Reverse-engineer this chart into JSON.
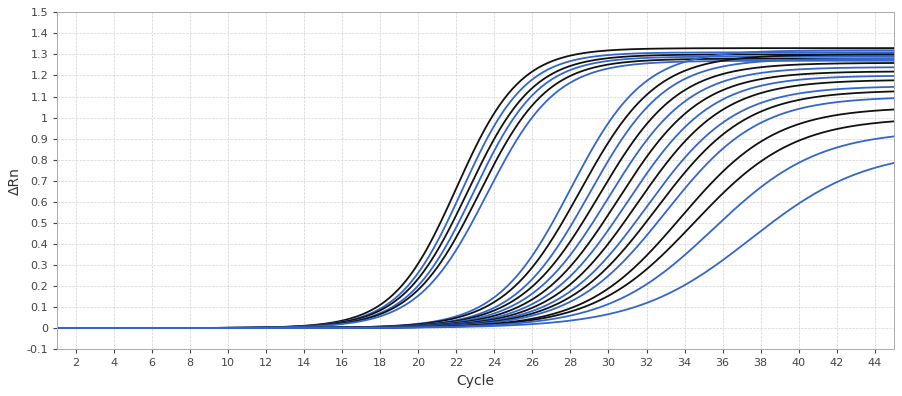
{
  "xlabel": "Cycle",
  "ylabel": "ΔRn",
  "xlim": [
    1,
    45
  ],
  "ylim": [
    -0.1,
    1.5
  ],
  "xticks": [
    2,
    4,
    6,
    8,
    10,
    12,
    14,
    16,
    18,
    20,
    22,
    24,
    26,
    28,
    30,
    32,
    34,
    36,
    38,
    40,
    42,
    44
  ],
  "yticks": [
    -0.1,
    0.0,
    0.1,
    0.2,
    0.3,
    0.4,
    0.5,
    0.6,
    0.7,
    0.8,
    0.9,
    1.0,
    1.1,
    1.2,
    1.3,
    1.4,
    1.5
  ],
  "bg_color": "#ffffff",
  "plot_bg_color": "#ffffff",
  "grid_color": "#cccccc",
  "curves": [
    {
      "midpoint": 22.0,
      "steepness": 0.6,
      "top": 1.33,
      "color": "black"
    },
    {
      "midpoint": 22.3,
      "steepness": 0.6,
      "top": 1.31,
      "color": "blue"
    },
    {
      "midpoint": 22.6,
      "steepness": 0.58,
      "top": 1.3,
      "color": "black"
    },
    {
      "midpoint": 22.9,
      "steepness": 0.58,
      "top": 1.29,
      "color": "blue"
    },
    {
      "midpoint": 23.2,
      "steepness": 0.56,
      "top": 1.28,
      "color": "black"
    },
    {
      "midpoint": 23.6,
      "steepness": 0.55,
      "top": 1.27,
      "color": "blue"
    },
    {
      "midpoint": 28.0,
      "steepness": 0.52,
      "top": 1.32,
      "color": "blue"
    },
    {
      "midpoint": 28.5,
      "steepness": 0.5,
      "top": 1.3,
      "color": "black"
    },
    {
      "midpoint": 29.0,
      "steepness": 0.5,
      "top": 1.28,
      "color": "blue"
    },
    {
      "midpoint": 29.5,
      "steepness": 0.48,
      "top": 1.26,
      "color": "black"
    },
    {
      "midpoint": 30.0,
      "steepness": 0.47,
      "top": 1.24,
      "color": "blue"
    },
    {
      "midpoint": 30.5,
      "steepness": 0.46,
      "top": 1.22,
      "color": "black"
    },
    {
      "midpoint": 31.0,
      "steepness": 0.45,
      "top": 1.2,
      "color": "blue"
    },
    {
      "midpoint": 31.5,
      "steepness": 0.44,
      "top": 1.18,
      "color": "black"
    },
    {
      "midpoint": 32.0,
      "steepness": 0.43,
      "top": 1.15,
      "color": "blue"
    },
    {
      "midpoint": 32.5,
      "steepness": 0.42,
      "top": 1.13,
      "color": "black"
    },
    {
      "midpoint": 33.0,
      "steepness": 0.41,
      "top": 1.1,
      "color": "blue"
    },
    {
      "midpoint": 33.8,
      "steepness": 0.4,
      "top": 1.05,
      "color": "black"
    },
    {
      "midpoint": 34.5,
      "steepness": 0.38,
      "top": 1.0,
      "color": "black"
    },
    {
      "midpoint": 35.5,
      "steepness": 0.36,
      "top": 0.94,
      "color": "blue"
    },
    {
      "midpoint": 37.5,
      "steepness": 0.33,
      "top": 0.85,
      "color": "blue"
    }
  ],
  "black_color": "#111111",
  "blue_color": "#3366cc",
  "linewidth": 1.3
}
